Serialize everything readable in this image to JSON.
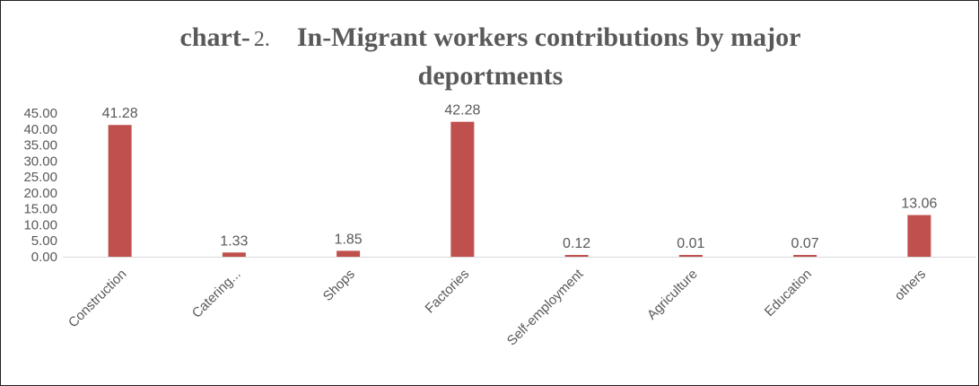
{
  "chart_data": {
    "type": "bar",
    "title_prefix": "chart-",
    "title_number": "2.",
    "title_main": "In-Migrant workers contributions by major",
    "title_line2": "deportments",
    "categories": [
      "Construction",
      "Catering...",
      "Shops",
      "Factories",
      "Self-employment",
      "Agriculture",
      "Education",
      "others"
    ],
    "values": [
      41.28,
      1.33,
      1.85,
      42.28,
      0.12,
      0.01,
      0.07,
      13.06
    ],
    "data_labels": [
      "41.28",
      "1.33",
      "1.85",
      "42.28",
      "0.12",
      "0.01",
      "0.07",
      "13.06"
    ],
    "yticks": [
      "0.00",
      "5.00",
      "10.00",
      "15.00",
      "20.00",
      "25.00",
      "30.00",
      "35.00",
      "40.00",
      "45.00"
    ],
    "ylim": [
      0,
      45
    ],
    "bar_color": "#c0504d",
    "grid": false
  }
}
